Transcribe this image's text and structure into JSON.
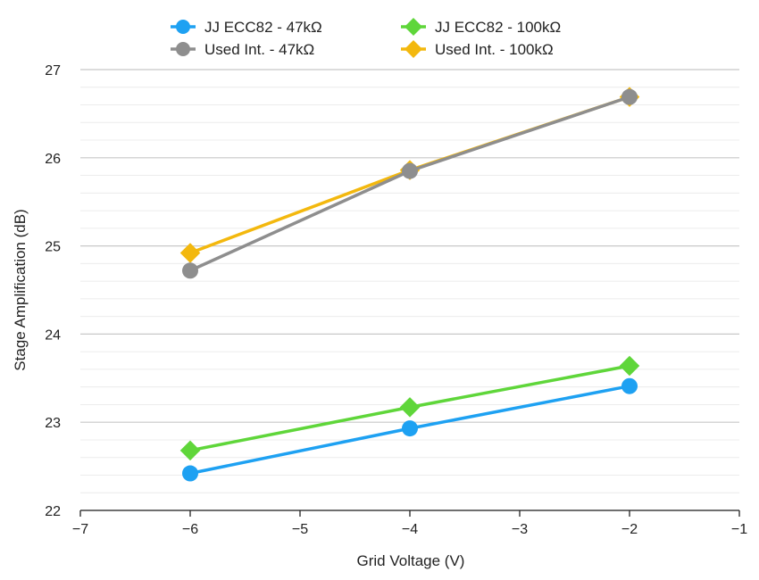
{
  "chart_data": {
    "type": "line",
    "title": "",
    "xlabel": "Grid Voltage (V)",
    "ylabel": "Stage Amplification (dB)",
    "xlim": [
      -7,
      -1
    ],
    "ylim": [
      22,
      27
    ],
    "xticks": [
      "-7",
      "-6",
      "-5",
      "-4",
      "-3",
      "-2",
      "-1"
    ],
    "yticks": [
      "22",
      "23",
      "24",
      "25",
      "26",
      "27"
    ],
    "grid": true,
    "minor_grid": true,
    "legend_position": "top",
    "series": [
      {
        "name": "JJ ECC82 - 47kΩ",
        "color": "#1ea1f2",
        "marker": "circle",
        "x": [
          -6,
          -4,
          -2
        ],
        "y": [
          22.42,
          22.93,
          23.41
        ]
      },
      {
        "name": "JJ ECC82 - 100kΩ",
        "color": "#5fd63a",
        "marker": "diamond",
        "x": [
          -6,
          -4,
          -2
        ],
        "y": [
          22.68,
          23.17,
          23.64
        ]
      },
      {
        "name": "Used Int. - 47kΩ",
        "color": "#8e8e8e",
        "marker": "circle",
        "x": [
          -6,
          -4,
          -2
        ],
        "y": [
          24.72,
          25.85,
          26.69
        ]
      },
      {
        "name": "Used Int. - 100kΩ",
        "color": "#f3b80e",
        "marker": "diamond",
        "x": [
          -6,
          -4,
          -2
        ],
        "y": [
          24.92,
          25.86,
          26.69
        ]
      }
    ]
  }
}
